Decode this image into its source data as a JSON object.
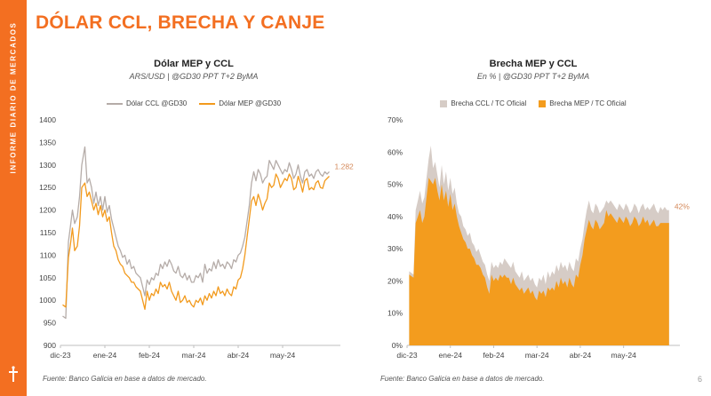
{
  "sidebar": {
    "label": "INFORME DIARIO DE MERCADOS"
  },
  "page_title": "DÓLAR CCL, BRECHA Y CANJE",
  "page_number": "6",
  "colors": {
    "accent": "#f36f21",
    "ccl": "#b5aca8",
    "mep": "#f29a1d",
    "brecha_ccl": "#d6ccc6",
    "brecha_mep": "#f39c1e"
  },
  "chart_data": [
    {
      "type": "line",
      "title": "Dólar MEP y CCL",
      "subtitle": "ARS/USD | @GD30 PPT T+2 ByMA",
      "ylim": [
        900,
        1400
      ],
      "yticks": [
        "900",
        "950",
        "1000",
        "1050",
        "1100",
        "1150",
        "1200",
        "1250",
        "1300",
        "1350",
        "1400"
      ],
      "xlim": [
        0,
        6.3
      ],
      "xticks": [
        {
          "pos": 0,
          "label": "dic-23"
        },
        {
          "pos": 1,
          "label": "ene-24"
        },
        {
          "pos": 2,
          "label": "feb-24"
        },
        {
          "pos": 3,
          "label": "mar-24"
        },
        {
          "pos": 4,
          "label": "abr-24"
        },
        {
          "pos": 5,
          "label": "may-24"
        }
      ],
      "end_label": "1.282",
      "series": [
        {
          "name": "Dólar CCL @GD30",
          "x": [
            0.05,
            0.12,
            0.18,
            0.22,
            0.27,
            0.32,
            0.38,
            0.43,
            0.48,
            0.55,
            0.6,
            0.65,
            0.7,
            0.75,
            0.8,
            0.85,
            0.9,
            0.95,
            1.0,
            1.05,
            1.1,
            1.15,
            1.2,
            1.25,
            1.3,
            1.35,
            1.4,
            1.45,
            1.5,
            1.55,
            1.6,
            1.65,
            1.7,
            1.75,
            1.8,
            1.85,
            1.9,
            1.95,
            2.0,
            2.05,
            2.1,
            2.15,
            2.2,
            2.25,
            2.3,
            2.35,
            2.4,
            2.45,
            2.5,
            2.55,
            2.6,
            2.65,
            2.7,
            2.75,
            2.8,
            2.85,
            2.9,
            2.95,
            3.0,
            3.05,
            3.1,
            3.15,
            3.2,
            3.25,
            3.3,
            3.35,
            3.4,
            3.45,
            3.5,
            3.55,
            3.6,
            3.65,
            3.7,
            3.75,
            3.8,
            3.85,
            3.9,
            3.95,
            4.0,
            4.05,
            4.1,
            4.15,
            4.2,
            4.25,
            4.3,
            4.35,
            4.4,
            4.45,
            4.5,
            4.55,
            4.6,
            4.65,
            4.7,
            4.75,
            4.8,
            4.85,
            4.9,
            4.95,
            5.0,
            5.05,
            5.1,
            5.15,
            5.2,
            5.25,
            5.3,
            5.35,
            5.4,
            5.45,
            5.5,
            5.55,
            5.6,
            5.65,
            5.7,
            5.75,
            5.8,
            5.85,
            5.9,
            5.95,
            6.0,
            6.05
          ],
          "values": [
            965,
            960,
            1130,
            1160,
            1200,
            1170,
            1185,
            1230,
            1300,
            1340,
            1260,
            1270,
            1250,
            1215,
            1240,
            1210,
            1230,
            1200,
            1230,
            1195,
            1210,
            1180,
            1160,
            1140,
            1120,
            1110,
            1095,
            1100,
            1080,
            1090,
            1070,
            1075,
            1060,
            1055,
            1050,
            1030,
            1010,
            1045,
            1035,
            1050,
            1045,
            1060,
            1055,
            1080,
            1070,
            1085,
            1075,
            1090,
            1080,
            1065,
            1060,
            1075,
            1055,
            1050,
            1060,
            1045,
            1055,
            1040,
            1040,
            1055,
            1050,
            1060,
            1040,
            1080,
            1060,
            1070,
            1065,
            1085,
            1070,
            1090,
            1075,
            1080,
            1070,
            1085,
            1080,
            1070,
            1090,
            1085,
            1100,
            1105,
            1120,
            1140,
            1175,
            1210,
            1260,
            1285,
            1265,
            1290,
            1280,
            1260,
            1270,
            1275,
            1310,
            1300,
            1290,
            1310,
            1300,
            1290,
            1280,
            1290,
            1285,
            1305,
            1290,
            1270,
            1280,
            1300,
            1275,
            1260,
            1285,
            1290,
            1275,
            1280,
            1270,
            1285,
            1290,
            1280,
            1275,
            1285,
            1280,
            1285
          ]
        },
        {
          "name": "Dólar MEP @GD30",
          "x": [
            0.05,
            0.12,
            0.18,
            0.22,
            0.27,
            0.32,
            0.38,
            0.43,
            0.48,
            0.55,
            0.6,
            0.65,
            0.7,
            0.75,
            0.8,
            0.85,
            0.9,
            0.95,
            1.0,
            1.05,
            1.1,
            1.15,
            1.2,
            1.25,
            1.3,
            1.35,
            1.4,
            1.45,
            1.5,
            1.55,
            1.6,
            1.65,
            1.7,
            1.75,
            1.8,
            1.85,
            1.9,
            1.95,
            2.0,
            2.05,
            2.1,
            2.15,
            2.2,
            2.25,
            2.3,
            2.35,
            2.4,
            2.45,
            2.5,
            2.55,
            2.6,
            2.65,
            2.7,
            2.75,
            2.8,
            2.85,
            2.9,
            2.95,
            3.0,
            3.05,
            3.1,
            3.15,
            3.2,
            3.25,
            3.3,
            3.35,
            3.4,
            3.45,
            3.5,
            3.55,
            3.6,
            3.65,
            3.7,
            3.75,
            3.8,
            3.85,
            3.9,
            3.95,
            4.0,
            4.05,
            4.1,
            4.15,
            4.2,
            4.25,
            4.3,
            4.35,
            4.4,
            4.45,
            4.5,
            4.55,
            4.6,
            4.65,
            4.7,
            4.75,
            4.8,
            4.85,
            4.9,
            4.95,
            5.0,
            5.05,
            5.1,
            5.15,
            5.2,
            5.25,
            5.3,
            5.35,
            5.4,
            5.45,
            5.5,
            5.55,
            5.6,
            5.65,
            5.7,
            5.75,
            5.8,
            5.85,
            5.9,
            5.95,
            6.0,
            6.05
          ],
          "values": [
            990,
            985,
            1095,
            1120,
            1160,
            1110,
            1120,
            1165,
            1250,
            1260,
            1230,
            1240,
            1220,
            1200,
            1215,
            1190,
            1210,
            1185,
            1200,
            1175,
            1185,
            1150,
            1120,
            1110,
            1090,
            1080,
            1075,
            1060,
            1055,
            1050,
            1040,
            1040,
            1030,
            1025,
            1020,
            1000,
            980,
            1020,
            1000,
            1015,
            1010,
            1025,
            1015,
            1040,
            1030,
            1035,
            1025,
            1040,
            1020,
            1010,
            1000,
            1020,
            995,
            1000,
            1010,
            995,
            1000,
            990,
            985,
            1000,
            995,
            1005,
            990,
            1010,
            1000,
            1015,
            1005,
            1020,
            1010,
            1030,
            1015,
            1020,
            1010,
            1025,
            1015,
            1010,
            1030,
            1025,
            1045,
            1050,
            1070,
            1100,
            1140,
            1180,
            1220,
            1230,
            1210,
            1235,
            1220,
            1200,
            1215,
            1225,
            1260,
            1250,
            1255,
            1280,
            1270,
            1250,
            1260,
            1270,
            1265,
            1280,
            1270,
            1245,
            1250,
            1275,
            1260,
            1240,
            1265,
            1270,
            1245,
            1250,
            1245,
            1260,
            1265,
            1250,
            1248,
            1265,
            1270,
            1275
          ]
        }
      ]
    },
    {
      "type": "area",
      "title": "Brecha MEP y CCL",
      "subtitle": "En % | @GD30 PPT T+2 ByMA",
      "ylim": [
        0,
        70
      ],
      "yticks": [
        "0%",
        "10%",
        "20%",
        "30%",
        "40%",
        "50%",
        "60%",
        "70%"
      ],
      "xlim": [
        0,
        6.3
      ],
      "xticks": [
        {
          "pos": 0,
          "label": "dic-23"
        },
        {
          "pos": 1,
          "label": "ene-24"
        },
        {
          "pos": 2,
          "label": "feb-24"
        },
        {
          "pos": 3,
          "label": "mar-24"
        },
        {
          "pos": 4,
          "label": "abr-24"
        },
        {
          "pos": 5,
          "label": "may-24"
        }
      ],
      "end_label": "42%",
      "series": [
        {
          "name": "Brecha CCL / TC Oficial",
          "x": [
            0.05,
            0.15,
            0.2,
            0.25,
            0.3,
            0.35,
            0.4,
            0.45,
            0.5,
            0.55,
            0.6,
            0.65,
            0.7,
            0.75,
            0.8,
            0.85,
            0.9,
            0.95,
            1.0,
            1.05,
            1.1,
            1.15,
            1.2,
            1.25,
            1.3,
            1.35,
            1.4,
            1.45,
            1.5,
            1.55,
            1.6,
            1.65,
            1.7,
            1.75,
            1.8,
            1.85,
            1.9,
            1.95,
            2.0,
            2.05,
            2.1,
            2.15,
            2.2,
            2.25,
            2.3,
            2.35,
            2.4,
            2.45,
            2.5,
            2.55,
            2.6,
            2.65,
            2.7,
            2.75,
            2.8,
            2.85,
            2.9,
            2.95,
            3.0,
            3.05,
            3.1,
            3.15,
            3.2,
            3.25,
            3.3,
            3.35,
            3.4,
            3.45,
            3.5,
            3.55,
            3.6,
            3.65,
            3.7,
            3.75,
            3.8,
            3.85,
            3.9,
            3.95,
            4.0,
            4.05,
            4.1,
            4.15,
            4.2,
            4.25,
            4.3,
            4.35,
            4.4,
            4.45,
            4.5,
            4.55,
            4.6,
            4.65,
            4.7,
            4.75,
            4.8,
            4.85,
            4.9,
            4.95,
            5.0,
            5.05,
            5.1,
            5.15,
            5.2,
            5.25,
            5.3,
            5.35,
            5.4,
            5.45,
            5.5,
            5.55,
            5.6,
            5.65,
            5.7,
            5.75,
            5.8,
            5.85,
            5.9,
            5.95,
            6.0,
            6.05
          ],
          "values": [
            23,
            22,
            42,
            45,
            48,
            44,
            46,
            52,
            58,
            62,
            55,
            57,
            53,
            49,
            56,
            50,
            54,
            48,
            52,
            47,
            49,
            44,
            41,
            40,
            37,
            36,
            34,
            35,
            32,
            31,
            29,
            30,
            28,
            26,
            25,
            22,
            20,
            26,
            24,
            25,
            24,
            26,
            25,
            27,
            26,
            25,
            24,
            26,
            23,
            22,
            21,
            23,
            20,
            21,
            22,
            20,
            21,
            19,
            18,
            21,
            20,
            22,
            19,
            23,
            21,
            23,
            22,
            25,
            23,
            26,
            24,
            25,
            23,
            26,
            24,
            23,
            27,
            26,
            30,
            33,
            38,
            42,
            45,
            42,
            41,
            44,
            43,
            41,
            42,
            43,
            45,
            44,
            45,
            44,
            43,
            42,
            44,
            43,
            42,
            44,
            43,
            41,
            42,
            44,
            43,
            41,
            43,
            44,
            42,
            43,
            42,
            43,
            44,
            42,
            41,
            43,
            42,
            43,
            42,
            42
          ]
        },
        {
          "name": "Brecha MEP / TC Oficial",
          "x": [
            0.05,
            0.15,
            0.2,
            0.25,
            0.3,
            0.35,
            0.4,
            0.45,
            0.5,
            0.55,
            0.6,
            0.65,
            0.7,
            0.75,
            0.8,
            0.85,
            0.9,
            0.95,
            1.0,
            1.05,
            1.1,
            1.15,
            1.2,
            1.25,
            1.3,
            1.35,
            1.4,
            1.45,
            1.5,
            1.55,
            1.6,
            1.65,
            1.7,
            1.75,
            1.8,
            1.85,
            1.9,
            1.95,
            2.0,
            2.05,
            2.1,
            2.15,
            2.2,
            2.25,
            2.3,
            2.35,
            2.4,
            2.45,
            2.5,
            2.55,
            2.6,
            2.65,
            2.7,
            2.75,
            2.8,
            2.85,
            2.9,
            2.95,
            3.0,
            3.05,
            3.1,
            3.15,
            3.2,
            3.25,
            3.3,
            3.35,
            3.4,
            3.45,
            3.5,
            3.55,
            3.6,
            3.65,
            3.7,
            3.75,
            3.8,
            3.85,
            3.9,
            3.95,
            4.0,
            4.05,
            4.1,
            4.15,
            4.2,
            4.25,
            4.3,
            4.35,
            4.4,
            4.45,
            4.5,
            4.55,
            4.6,
            4.65,
            4.7,
            4.75,
            4.8,
            4.85,
            4.9,
            4.95,
            5.0,
            5.05,
            5.1,
            5.15,
            5.2,
            5.25,
            5.3,
            5.35,
            5.4,
            5.45,
            5.5,
            5.55,
            5.6,
            5.65,
            5.7,
            5.75,
            5.8,
            5.85,
            5.9,
            5.95,
            6.0,
            6.05
          ],
          "values": [
            22,
            21,
            38,
            40,
            42,
            38,
            40,
            46,
            52,
            51,
            50,
            52,
            48,
            45,
            50,
            45,
            48,
            43,
            47,
            42,
            44,
            40,
            37,
            35,
            33,
            32,
            30,
            30,
            28,
            27,
            25,
            25,
            24,
            22,
            21,
            18,
            16,
            22,
            20,
            21,
            20,
            22,
            21,
            22,
            21,
            21,
            19,
            21,
            19,
            18,
            17,
            18,
            16,
            17,
            18,
            16,
            17,
            15,
            14,
            17,
            16,
            17,
            15,
            18,
            17,
            18,
            17,
            20,
            18,
            21,
            19,
            20,
            18,
            21,
            19,
            18,
            22,
            21,
            25,
            28,
            33,
            36,
            39,
            37,
            36,
            39,
            38,
            36,
            37,
            38,
            42,
            40,
            41,
            40,
            39,
            38,
            40,
            39,
            38,
            40,
            39,
            37,
            38,
            40,
            39,
            37,
            38,
            40,
            38,
            39,
            37,
            38,
            39,
            37,
            37,
            38,
            38,
            38,
            38,
            38
          ]
        }
      ]
    }
  ],
  "source1": "Fuente: Banco Galicia en base a datos de mercado.",
  "source2": "Fuente: Banco Galicia en base a datos de mercado."
}
